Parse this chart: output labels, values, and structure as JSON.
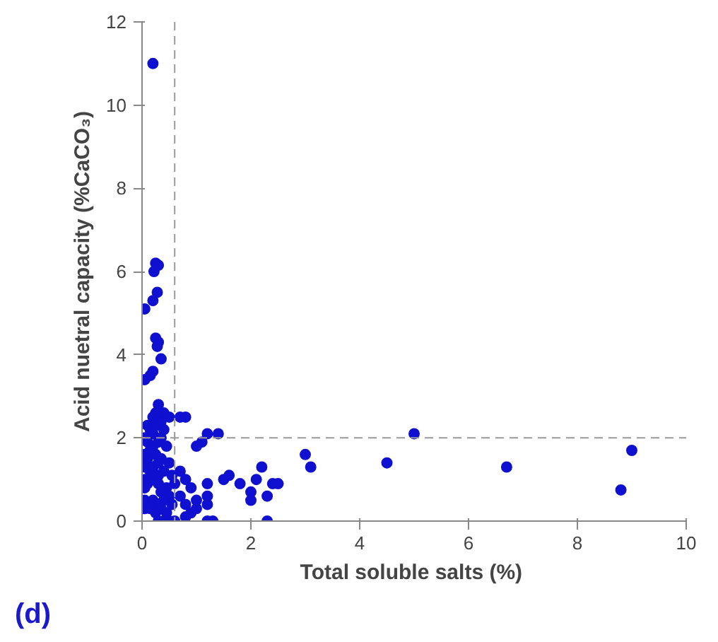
{
  "chart_data": {
    "type": "scatter",
    "xlabel": "Total soluble salts  (%)",
    "ylabel": "Acid nuetral capacity (%CaCO₃)",
    "annotations": [
      "(d)"
    ],
    "xlim": [
      0,
      10
    ],
    "ylim": [
      0,
      12
    ],
    "xticks": [
      0,
      2,
      4,
      6,
      8,
      10
    ],
    "yticks": [
      0,
      2,
      4,
      6,
      8,
      10,
      12
    ],
    "grid": false,
    "marker": "circle",
    "ref_lines": [
      {
        "axis": "x",
        "value": 0.6,
        "label": null,
        "color": "#999999",
        "line_style": "dashed"
      },
      {
        "axis": "y",
        "value": 2,
        "label": null,
        "color": "#999999",
        "line_style": "dashed"
      }
    ],
    "series": [
      {
        "color": "#1010d0",
        "x": [
          0.2,
          0.25,
          0.3,
          0.22,
          0.28,
          0.05,
          0.2,
          0.25,
          0.3,
          0.28,
          0.35,
          0.2,
          0.05,
          0.15,
          0.3,
          0.25,
          0.2,
          0.35,
          0.1,
          0.15,
          0.2,
          0.25,
          0.4,
          0.05,
          0.1,
          0.2,
          0.3,
          0.35,
          0.45,
          0.05,
          0.1,
          0.15,
          0.25,
          0.35,
          0.5,
          0.05,
          0.15,
          0.2,
          0.3,
          0.4,
          0.55,
          0.05,
          0.1,
          0.2,
          0.3,
          0.45,
          0.6,
          0.05,
          0.35,
          0.5,
          0.05,
          0.2,
          0.3,
          0.4,
          0.55,
          0.05,
          0.15,
          0.25,
          0.35,
          0.45,
          0.3,
          0.4,
          0.5,
          0.6,
          0.3,
          0.4,
          0.5,
          0.7,
          0.8,
          0.7,
          0.8,
          0.9,
          1.0,
          0.9,
          0.8,
          1.0,
          1.3,
          0.8,
          0.7,
          1.2,
          1.4,
          1.0,
          1.1,
          1.5,
          1.6,
          1.8,
          2.0,
          2.1,
          2.2,
          2.0,
          2.3,
          2.4,
          2.5,
          1.2,
          1.2,
          1.2,
          2.3,
          1.2,
          3.0,
          3.1,
          4.5,
          5.0,
          6.7,
          8.8,
          9.0
        ],
        "values": [
          11.0,
          6.2,
          6.15,
          6.0,
          5.5,
          5.1,
          5.3,
          4.4,
          4.3,
          4.2,
          3.9,
          3.6,
          3.4,
          3.5,
          2.8,
          2.6,
          2.5,
          2.4,
          2.3,
          2.2,
          2.1,
          2.3,
          2.6,
          2.0,
          1.9,
          1.8,
          1.9,
          2.0,
          1.8,
          1.6,
          1.5,
          1.7,
          1.6,
          1.5,
          1.4,
          1.3,
          1.2,
          1.3,
          1.1,
          1.2,
          1.1,
          1.0,
          0.9,
          1.0,
          0.9,
          0.8,
          0.9,
          0.8,
          0.7,
          0.6,
          0.5,
          0.5,
          0.4,
          0.5,
          0.4,
          0.3,
          0.3,
          0.2,
          0.3,
          0.2,
          0.0,
          0.0,
          0.0,
          0.0,
          1.4,
          2.2,
          2.5,
          1.2,
          1.0,
          0.6,
          0.4,
          0.8,
          0.5,
          0.2,
          0.1,
          0.3,
          0.0,
          2.5,
          2.5,
          2.1,
          2.1,
          1.8,
          1.9,
          1.0,
          1.1,
          0.9,
          0.7,
          1.0,
          1.3,
          0.5,
          0.6,
          0.9,
          0.9,
          0.9,
          0.6,
          0.4,
          0.0,
          0.0,
          1.6,
          1.3,
          1.4,
          2.1,
          1.3,
          0.75,
          1.7
        ]
      }
    ]
  }
}
